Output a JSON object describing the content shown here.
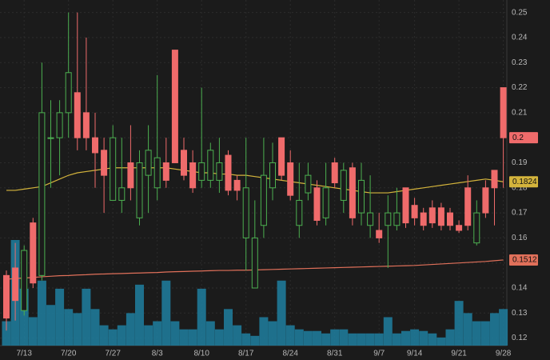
{
  "chart_data": {
    "type": "candlestick",
    "categories": [
      null,
      null,
      "7/13",
      null,
      null,
      null,
      null,
      "7/20",
      null,
      null,
      null,
      null,
      "7/27",
      null,
      null,
      null,
      null,
      "8/3",
      null,
      null,
      null,
      null,
      "8/10",
      null,
      null,
      null,
      null,
      "8/17",
      null,
      null,
      null,
      null,
      "8/24",
      null,
      null,
      null,
      null,
      "8/31",
      null,
      null,
      null,
      null,
      "9/7",
      null,
      null,
      null,
      "9/14",
      null,
      null,
      null,
      null,
      "9/21",
      null,
      null,
      null,
      null,
      "9/28"
    ],
    "open": [
      0.145,
      0.148,
      0.131,
      0.166,
      0.145,
      0.2,
      0.2,
      0.21,
      0.218,
      0.21,
      0.2,
      0.195,
      0.175,
      0.175,
      0.19,
      0.168,
      0.185,
      0.18,
      0.19,
      0.235,
      0.195,
      0.19,
      0.183,
      0.183,
      0.183,
      0.193,
      0.183,
      0.16,
      0.14,
      0.165,
      0.18,
      0.2,
      0.19,
      0.165,
      0.178,
      0.18,
      0.168,
      0.19,
      0.175,
      0.188,
      0.17,
      0.165,
      0.163,
      0.165,
      0.165,
      0.18,
      0.173,
      0.17,
      0.172,
      0.172,
      0.17,
      0.165,
      0.18,
      0.158,
      0.18,
      0.187,
      0.22
    ],
    "high": [
      0.147,
      0.158,
      0.157,
      0.168,
      0.23,
      0.215,
      0.215,
      0.25,
      0.25,
      0.24,
      0.21,
      0.2,
      0.205,
      0.2,
      0.205,
      0.195,
      0.205,
      0.225,
      0.2,
      0.235,
      0.2,
      0.195,
      0.22,
      0.198,
      0.2,
      0.195,
      0.185,
      0.2,
      0.175,
      0.2,
      0.198,
      0.2,
      0.195,
      0.19,
      0.19,
      0.183,
      0.19,
      0.192,
      0.19,
      0.19,
      0.19,
      0.185,
      0.17,
      0.177,
      0.18,
      0.18,
      0.176,
      0.172,
      0.175,
      0.174,
      0.172,
      0.167,
      0.185,
      0.175,
      0.183,
      0.187,
      0.22
    ],
    "low": [
      0.123,
      0.127,
      0.129,
      0.14,
      0.143,
      0.18,
      0.185,
      0.2,
      0.195,
      0.195,
      0.18,
      0.17,
      0.175,
      0.17,
      0.175,
      0.165,
      0.17,
      0.175,
      0.18,
      0.19,
      0.183,
      0.178,
      0.18,
      0.18,
      0.178,
      0.177,
      0.175,
      0.147,
      0.14,
      0.16,
      0.175,
      0.183,
      0.175,
      0.16,
      0.175,
      0.165,
      0.165,
      0.18,
      0.17,
      0.165,
      0.165,
      0.16,
      0.158,
      0.148,
      0.163,
      0.164,
      0.165,
      0.163,
      0.164,
      0.163,
      0.163,
      0.162,
      0.163,
      0.157,
      0.168,
      0.165,
      0.18
    ],
    "close": [
      0.128,
      0.135,
      0.155,
      0.142,
      0.21,
      0.2,
      0.21,
      0.226,
      0.2,
      0.2,
      0.194,
      0.185,
      0.2,
      0.18,
      0.18,
      0.19,
      0.195,
      0.192,
      0.183,
      0.19,
      0.185,
      0.18,
      0.19,
      0.195,
      0.19,
      0.179,
      0.179,
      0.18,
      0.16,
      0.185,
      0.19,
      0.185,
      0.177,
      0.175,
      0.185,
      0.167,
      0.18,
      0.182,
      0.187,
      0.168,
      0.183,
      0.17,
      0.16,
      0.17,
      0.17,
      0.166,
      0.168,
      0.165,
      0.166,
      0.165,
      0.165,
      0.163,
      0.165,
      0.17,
      0.17,
      0.18,
      0.2
    ],
    "up_color": "#4caf50",
    "down_color": "#ef6b6b",
    "last_label": "0.2",
    "volume": {
      "color": "#1e7fa0",
      "values": [
        30,
        130,
        70,
        35,
        80,
        50,
        70,
        45,
        40,
        70,
        45,
        25,
        20,
        25,
        40,
        75,
        25,
        30,
        80,
        30,
        20,
        20,
        70,
        30,
        20,
        45,
        25,
        15,
        12,
        35,
        30,
        80,
        25,
        20,
        18,
        18,
        15,
        20,
        20,
        15,
        15,
        15,
        15,
        35,
        15,
        18,
        20,
        18,
        15,
        10,
        20,
        55,
        40,
        30,
        30,
        40,
        45
      ]
    },
    "series": [
      {
        "color": "#d4b43c",
        "last_label": "0.1824",
        "values": [
          0.179,
          0.179,
          0.1795,
          0.18,
          0.1805,
          0.182,
          0.1835,
          0.185,
          0.186,
          0.1865,
          0.187,
          0.1875,
          0.188,
          0.188,
          0.188,
          0.188,
          0.188,
          0.188,
          0.188,
          0.1875,
          0.187,
          0.1865,
          0.186,
          0.186,
          0.1855,
          0.1855,
          0.185,
          0.185,
          0.1845,
          0.184,
          0.1835,
          0.183,
          0.1825,
          0.182,
          0.1815,
          0.181,
          0.1805,
          0.18,
          0.1795,
          0.179,
          0.1785,
          0.178,
          0.178,
          0.178,
          0.1785,
          0.179,
          0.1795,
          0.18,
          0.1805,
          0.181,
          0.1815,
          0.182,
          0.1825,
          0.183,
          0.1835,
          0.183,
          0.1824
        ]
      },
      {
        "color": "#e0705a",
        "last_label": "0.1512",
        "values": [
          0.1435,
          0.1438,
          0.144,
          0.1442,
          0.1445,
          0.1447,
          0.1449,
          0.145,
          0.1452,
          0.1453,
          0.1455,
          0.1456,
          0.1457,
          0.1458,
          0.1459,
          0.146,
          0.1461,
          0.1462,
          0.1464,
          0.1465,
          0.1466,
          0.1467,
          0.1468,
          0.1469,
          0.147,
          0.147,
          0.1471,
          0.1471,
          0.1472,
          0.1473,
          0.1474,
          0.1475,
          0.1476,
          0.1477,
          0.1478,
          0.1479,
          0.148,
          0.1481,
          0.1482,
          0.1483,
          0.1484,
          0.1485,
          0.1486,
          0.1487,
          0.1488,
          0.1489,
          0.149,
          0.1492,
          0.1494,
          0.1496,
          0.1498,
          0.15,
          0.1502,
          0.1504,
          0.1506,
          0.1509,
          0.1512
        ]
      }
    ],
    "ylim": [
      0.117,
      0.255
    ],
    "yticks": [
      0.12,
      0.13,
      0.14,
      0.15,
      0.16,
      0.17,
      0.18,
      0.19,
      {
        "value": 0.2,
        "label": "0.20"
      },
      0.21,
      0.22,
      0.23,
      0.24,
      0.25
    ],
    "grid": true
  }
}
